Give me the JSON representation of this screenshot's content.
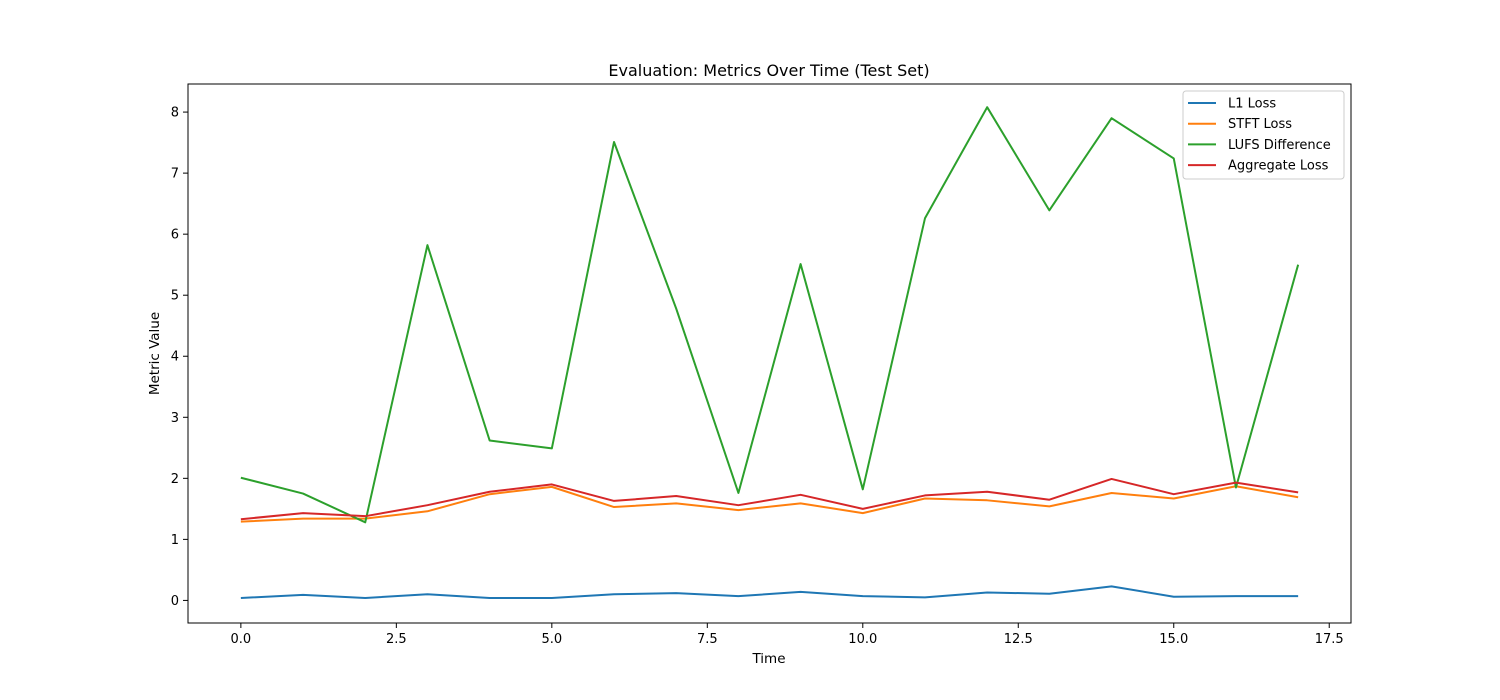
{
  "chart_data": {
    "type": "line",
    "title": "Evaluation: Metrics Over Time (Test Set)",
    "xlabel": "Time",
    "ylabel": "Metric Value",
    "xlim": [
      -0.85,
      17.85
    ],
    "ylim": [
      -0.37,
      8.46
    ],
    "xticks": [
      0.0,
      2.5,
      5.0,
      7.5,
      10.0,
      12.5,
      15.0,
      17.5
    ],
    "xtick_labels": [
      "0.0",
      "2.5",
      "5.0",
      "7.5",
      "10.0",
      "12.5",
      "15.0",
      "17.5"
    ],
    "yticks": [
      0,
      1,
      2,
      3,
      4,
      5,
      6,
      7,
      8
    ],
    "ytick_labels": [
      "0",
      "1",
      "2",
      "3",
      "4",
      "5",
      "6",
      "7",
      "8"
    ],
    "grid": false,
    "legend_position": "top-right",
    "x": [
      0,
      1,
      2,
      3,
      4,
      5,
      6,
      7,
      8,
      9,
      10,
      11,
      12,
      13,
      14,
      15,
      16,
      17
    ],
    "series": [
      {
        "name": "L1 Loss",
        "color": "#1f77b4",
        "values": [
          0.04,
          0.09,
          0.04,
          0.1,
          0.04,
          0.04,
          0.1,
          0.12,
          0.07,
          0.14,
          0.07,
          0.05,
          0.13,
          0.11,
          0.23,
          0.06,
          0.07,
          0.07
        ]
      },
      {
        "name": "STFT Loss",
        "color": "#ff7f0e",
        "values": [
          1.29,
          1.34,
          1.34,
          1.46,
          1.74,
          1.86,
          1.53,
          1.59,
          1.48,
          1.59,
          1.43,
          1.67,
          1.64,
          1.54,
          1.76,
          1.67,
          1.87,
          1.69
        ]
      },
      {
        "name": "LUFS Difference",
        "color": "#2ca02c",
        "values": [
          2.01,
          1.75,
          1.28,
          5.82,
          2.62,
          2.49,
          7.51,
          4.78,
          1.76,
          5.51,
          1.82,
          6.26,
          8.08,
          6.39,
          7.9,
          7.24,
          1.85,
          5.5
        ]
      },
      {
        "name": "Aggregate Loss",
        "color": "#d62728",
        "values": [
          1.33,
          1.43,
          1.38,
          1.56,
          1.78,
          1.9,
          1.63,
          1.71,
          1.56,
          1.73,
          1.5,
          1.72,
          1.78,
          1.65,
          1.99,
          1.74,
          1.93,
          1.77
        ]
      }
    ]
  }
}
